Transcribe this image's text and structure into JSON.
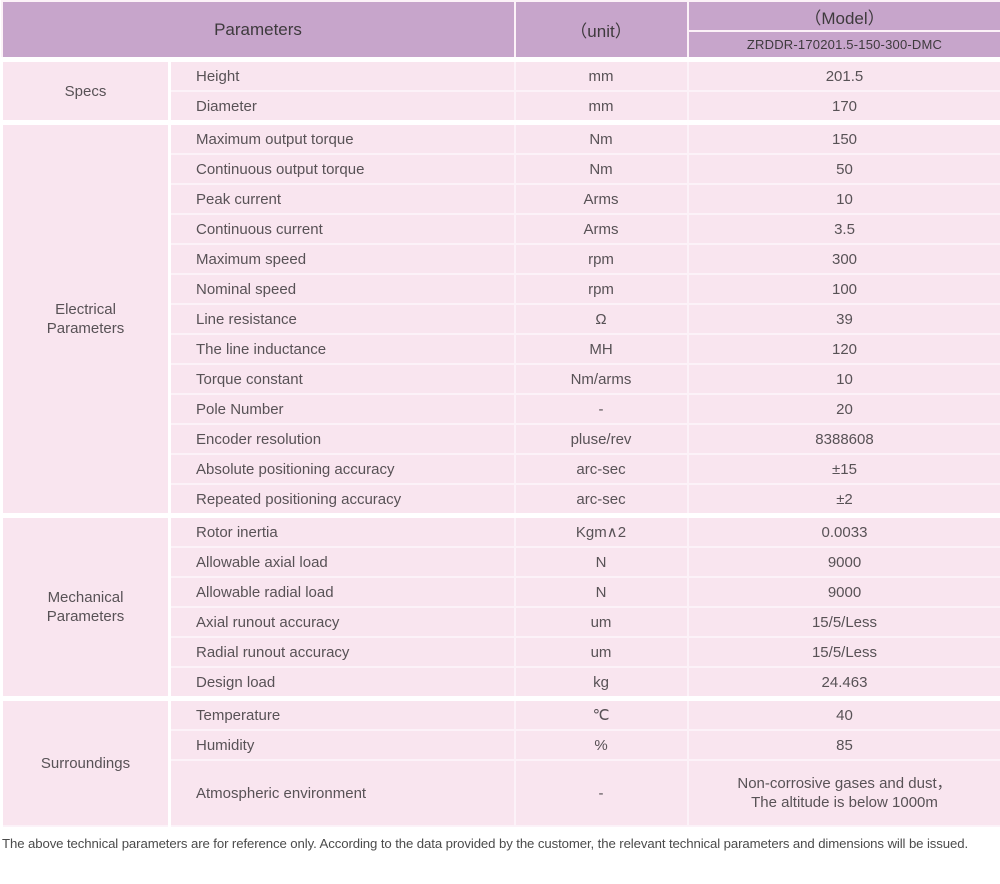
{
  "colors": {
    "header_purple": "#C7A5CB",
    "cell_pink": "#F9E5EF",
    "grid_line": "#FCF2F8",
    "section_gap": "#FFFFFF",
    "header_text": "#3E3A3D",
    "body_text": "#585256"
  },
  "header": {
    "parameters_label": "Parameters",
    "unit_label": "（unit）",
    "model_label": "（Model）",
    "model_number": "ZRDDR-170201.5-150-300-DMC"
  },
  "sections": [
    {
      "label": "Specs",
      "rows": [
        {
          "name": "Height",
          "unit": "mm",
          "value": "201.5"
        },
        {
          "name": "Diameter",
          "unit": "mm",
          "value": "170"
        }
      ]
    },
    {
      "label": "Electrical\nParameters",
      "rows": [
        {
          "name": "Maximum output torque",
          "unit": "Nm",
          "value": "150"
        },
        {
          "name": "Continuous output torque",
          "unit": "Nm",
          "value": "50"
        },
        {
          "name": "Peak current",
          "unit": "Arms",
          "value": "10"
        },
        {
          "name": "Continuous current",
          "unit": "Arms",
          "value": "3.5"
        },
        {
          "name": "Maximum speed",
          "unit": "rpm",
          "value": "300"
        },
        {
          "name": "Nominal speed",
          "unit": "rpm",
          "value": "100"
        },
        {
          "name": "Line resistance",
          "unit": "Ω",
          "value": "39"
        },
        {
          "name": "The line inductance",
          "unit": "MH",
          "value": "120"
        },
        {
          "name": "Torque constant",
          "unit": "Nm/arms",
          "value": "10"
        },
        {
          "name": "Pole Number",
          "unit": "-",
          "value": "20"
        },
        {
          "name": "Encoder resolution",
          "unit": "pluse/rev",
          "value": "8388608"
        },
        {
          "name": "Absolute positioning accuracy",
          "unit": "arc-sec",
          "value": "±15"
        },
        {
          "name": "Repeated positioning accuracy",
          "unit": "arc-sec",
          "value": "±2"
        }
      ]
    },
    {
      "label": "Mechanical\nParameters",
      "rows": [
        {
          "name": "Rotor inertia",
          "unit": "Kgm∧2",
          "value": "0.0033"
        },
        {
          "name": "Allowable axial load",
          "unit": "N",
          "value": "9000"
        },
        {
          "name": "Allowable radial load",
          "unit": "N",
          "value": "9000"
        },
        {
          "name": "Axial runout accuracy",
          "unit": "um",
          "value": "15/5/Less"
        },
        {
          "name": "Radial runout accuracy",
          "unit": "um",
          "value": "15/5/Less"
        },
        {
          "name": "Design load",
          "unit": "kg",
          "value": "24.463"
        }
      ]
    },
    {
      "label": "Surroundings",
      "rows": [
        {
          "name": "Temperature",
          "unit": "℃",
          "value": "40"
        },
        {
          "name": "Humidity",
          "unit": "%",
          "value": "85"
        },
        {
          "name": "Atmospheric environment",
          "unit": "-",
          "value": "Non-corrosive gases and dust，\nThe altitude is below 1000m"
        }
      ]
    }
  ],
  "footer": {
    "note": "The above technical parameters are for reference only. According to the data provided by the customer, the relevant technical parameters and dimensions will be issued."
  }
}
